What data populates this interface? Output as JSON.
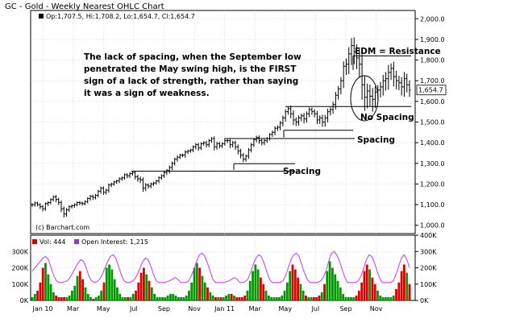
{
  "header": {
    "title": "GC - Gold - Weekly Nearest OHLC Chart"
  },
  "price_legend": "Op:1,707.5, Hi:1,708.2, Lo:1,654.7, Cl:1,654.7",
  "last_price_label": "1,654.7",
  "copyright": "(c) Barchart.com",
  "annotations": {
    "main": "The lack of spacing, when the September low penetrated the May swing high, is the FIRST sign of a lack of strength, rather than saying it was a sign of weakness.",
    "edm": "EDM = Resistance",
    "no_spacing": "No Spacing",
    "spacing_upper": "Spacing",
    "spacing_lower": "Spacing"
  },
  "volume_legend": {
    "vol_label": "Vol: 444",
    "oi_label": "Open Interest: 1,215"
  },
  "colors": {
    "up_bar": "#009900",
    "down_bar": "#dd0000",
    "oi_line": "#cc33ff",
    "price_bar": "#000000",
    "grid": "#c8c8c8"
  },
  "chart_data": [
    {
      "type": "ohlc",
      "title": "GC - Gold - Weekly Nearest OHLC Chart",
      "x_ticks": [
        "Jan 10",
        "Mar",
        "May",
        "Jul",
        "Sep",
        "Nov",
        "Jan 11",
        "Mar",
        "May",
        "Jul",
        "Sep",
        "Nov"
      ],
      "y_ticks": [
        "2,000.0",
        "1,900.0",
        "1,800.0",
        "1,700.0",
        "1,600.0",
        "1,500.0",
        "1,400.0",
        "1,300.0",
        "1,200.0",
        "1,100.0",
        "1,000.0"
      ],
      "ylim": [
        960,
        2040
      ],
      "grid": true,
      "series": [
        {
          "close": [
            1100,
            1108,
            1100,
            1090,
            1080,
            1105,
            1110,
            1125,
            1138,
            1125,
            1110,
            1080,
            1055,
            1075,
            1090,
            1095,
            1100,
            1110,
            1108,
            1105,
            1115,
            1130,
            1140,
            1135,
            1145,
            1165,
            1180,
            1160,
            1170,
            1195,
            1200,
            1210,
            1215,
            1225,
            1230,
            1245,
            1240,
            1250,
            1255,
            1235,
            1225,
            1220,
            1180,
            1195,
            1190,
            1200,
            1205,
            1215,
            1230,
            1240,
            1255,
            1265,
            1280,
            1300,
            1320,
            1330,
            1340,
            1340,
            1355,
            1360,
            1365,
            1380,
            1390,
            1375,
            1395,
            1400,
            1390,
            1410,
            1420,
            1380,
            1395,
            1385,
            1395,
            1410,
            1410,
            1390,
            1400,
            1380,
            1360,
            1340,
            1320,
            1335,
            1365,
            1390,
            1415,
            1425,
            1410,
            1400,
            1410,
            1420,
            1440,
            1450,
            1470,
            1475,
            1495,
            1520,
            1550,
            1565,
            1540,
            1510,
            1500,
            1520,
            1530,
            1515,
            1540,
            1560,
            1550,
            1540,
            1510,
            1520,
            1500,
            1520,
            1550,
            1560,
            1585,
            1630,
            1660,
            1700,
            1770,
            1780,
            1830,
            1870,
            1840,
            1810,
            1780,
            1680,
            1620,
            1650,
            1625,
            1610,
            1645,
            1655,
            1670,
            1700,
            1710,
            1740,
            1760,
            1720,
            1700,
            1690,
            1670,
            1710,
            1680,
            1655
          ],
          "range": [
            18,
            16,
            14,
            18,
            20,
            16,
            18,
            14,
            16,
            22,
            20,
            26,
            28,
            22,
            18,
            14,
            16,
            14,
            18,
            16,
            14,
            16,
            18,
            20,
            16,
            18,
            20,
            22,
            18,
            20,
            16,
            14,
            16,
            18,
            16,
            14,
            20,
            18,
            16,
            22,
            24,
            26,
            30,
            24,
            20,
            18,
            16,
            14,
            18,
            16,
            18,
            20,
            24,
            22,
            18,
            20,
            16,
            18,
            22,
            16,
            14,
            18,
            22,
            24,
            18,
            16,
            22,
            20,
            18,
            28,
            24,
            22,
            18,
            16,
            20,
            26,
            22,
            24,
            28,
            26,
            24,
            20,
            22,
            20,
            18,
            22,
            26,
            22,
            20,
            18,
            16,
            20,
            24,
            22,
            26,
            28,
            30,
            24,
            36,
            40,
            32,
            30,
            28,
            36,
            30,
            28,
            26,
            30,
            34,
            32,
            40,
            38,
            36,
            30,
            34,
            40,
            36,
            44,
            60,
            70,
            80,
            90,
            100,
            90,
            110,
            120,
            110,
            90,
            80,
            100,
            70,
            60,
            60,
            70,
            80,
            90,
            60,
            80,
            70,
            60,
            70,
            80,
            60,
            55
          ]
        }
      ]
    },
    {
      "type": "bar",
      "title": "",
      "series": [
        {
          "name": "Vol: 444",
          "values": [
            20,
            40,
            60,
            110,
            200,
            230,
            160,
            100,
            50,
            30,
            20,
            20,
            20,
            20,
            30,
            60,
            90,
            150,
            180,
            130,
            80,
            40,
            20,
            10,
            20,
            30,
            60,
            110,
            200,
            220,
            190,
            130,
            80,
            40,
            20,
            20,
            20,
            20,
            40,
            60,
            110,
            170,
            200,
            160,
            120,
            80,
            40,
            20,
            20,
            20,
            20,
            30,
            40,
            40,
            30,
            20,
            20,
            20,
            30,
            60,
            110,
            200,
            230,
            200,
            150,
            110,
            80,
            50,
            30,
            20,
            20,
            20,
            20,
            30,
            40,
            40,
            30,
            20,
            20,
            20,
            30,
            60,
            120,
            180,
            220,
            190,
            140,
            100,
            60,
            30,
            20,
            20,
            20,
            20,
            30,
            60,
            110,
            180,
            220,
            190,
            140,
            100,
            60,
            30,
            20,
            20,
            20,
            20,
            30,
            50,
            100,
            180,
            240,
            200,
            160,
            120,
            80,
            40,
            20,
            20,
            20,
            20,
            30,
            60,
            110,
            180,
            220,
            190,
            140,
            100,
            60,
            30,
            20,
            20,
            20,
            20,
            30,
            70,
            110,
            180,
            220,
            170,
            100
          ]
        },
        {
          "name": "Open Interest: 1,215",
          "values": [
            180,
            200,
            220,
            240,
            260,
            270,
            250,
            200,
            150,
            120,
            110,
            110,
            115,
            120,
            140,
            170,
            200,
            230,
            250,
            240,
            200,
            150,
            120,
            110,
            115,
            130,
            160,
            200,
            240,
            270,
            280,
            260,
            210,
            160,
            120,
            110,
            110,
            115,
            130,
            160,
            200,
            240,
            260,
            250,
            210,
            160,
            120,
            110,
            110,
            110,
            115,
            120,
            130,
            140,
            130,
            110,
            110,
            110,
            120,
            150,
            190,
            240,
            280,
            290,
            270,
            230,
            180,
            130,
            110,
            110,
            110,
            110,
            115,
            120,
            130,
            140,
            130,
            110,
            110,
            115,
            130,
            170,
            220,
            260,
            280,
            270,
            230,
            180,
            130,
            110,
            110,
            110,
            110,
            120,
            150,
            200,
            250,
            280,
            290,
            270,
            220,
            170,
            130,
            110,
            110,
            110,
            110,
            120,
            140,
            180,
            240,
            290,
            300,
            280,
            240,
            190,
            140,
            110,
            110,
            110,
            110,
            120,
            150,
            200,
            250,
            280,
            270,
            230,
            180,
            130,
            110,
            110,
            110,
            110,
            120,
            160,
            210,
            260,
            280,
            250,
            200
          ]
        }
      ],
      "ylim": [
        0,
        400000
      ],
      "y_ticks": [
        "400K",
        "300K",
        "200K",
        "100K",
        "0K"
      ],
      "left_y_ticks": [
        "300K",
        "200K",
        "100K",
        "0K"
      ]
    }
  ]
}
